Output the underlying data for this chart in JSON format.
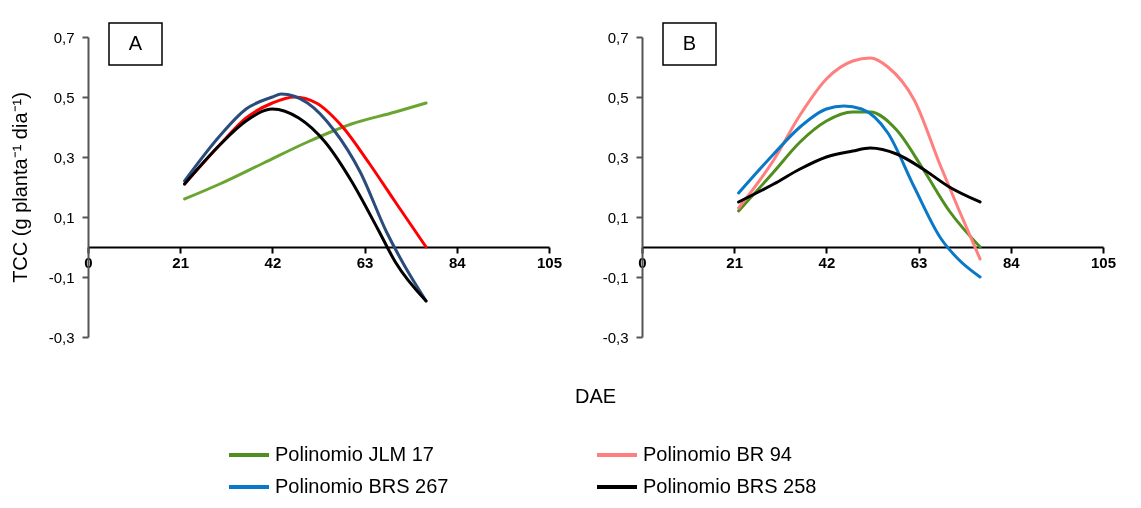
{
  "chart_data": [
    {
      "type": "line",
      "annotations": [
        "A"
      ],
      "ylabel": "TCC (g planta⁻¹ dia⁻¹)",
      "xlabel": "DAE",
      "xlim": [
        0,
        105
      ],
      "xticks": [
        0,
        21,
        42,
        63,
        84,
        105
      ],
      "ylim": [
        -0.3,
        0.7
      ],
      "yticks": [
        {
          "value": -0.3,
          "label": "-0,3"
        },
        {
          "value": -0.1,
          "label": "-0,1"
        },
        {
          "value": 0.1,
          "label": "0,1"
        },
        {
          "value": 0.3,
          "label": "0,3"
        },
        {
          "value": 0.5,
          "label": "0,5"
        },
        {
          "value": 0.7,
          "label": "0,7"
        }
      ],
      "grid": false,
      "legend": false,
      "marker": "none",
      "line_style": "solid",
      "series": [
        {
          "color": "#6aa531",
          "x": [
            22,
            30,
            40,
            50,
            60,
            70,
            77
          ],
          "values": [
            0.16,
            0.21,
            0.28,
            0.35,
            0.41,
            0.45,
            0.48
          ]
        },
        {
          "color": "#ff0000",
          "x": [
            22,
            30,
            36,
            42,
            47,
            52,
            58,
            64,
            70,
            77
          ],
          "values": [
            0.21,
            0.34,
            0.43,
            0.48,
            0.5,
            0.48,
            0.4,
            0.28,
            0.15,
            0.0
          ]
        },
        {
          "color": "#2a4b7c",
          "x": [
            22,
            30,
            36,
            42,
            44,
            50,
            56,
            62,
            68,
            72,
            77
          ],
          "values": [
            0.22,
            0.37,
            0.46,
            0.5,
            0.51,
            0.48,
            0.39,
            0.25,
            0.05,
            -0.06,
            -0.18
          ]
        },
        {
          "color": "#000000",
          "x": [
            22,
            30,
            36,
            42,
            48,
            54,
            60,
            66,
            70,
            77
          ],
          "values": [
            0.21,
            0.34,
            0.42,
            0.46,
            0.43,
            0.35,
            0.22,
            0.06,
            -0.05,
            -0.18
          ]
        }
      ]
    },
    {
      "type": "line",
      "annotations": [
        "B"
      ],
      "xlim": [
        0,
        105
      ],
      "xticks": [
        0,
        21,
        42,
        63,
        84,
        105
      ],
      "ylim": [
        -0.3,
        0.7
      ],
      "yticks": [
        {
          "value": -0.3,
          "label": "-0,3"
        },
        {
          "value": -0.1,
          "label": "-0,1"
        },
        {
          "value": 0.1,
          "label": "0,1"
        },
        {
          "value": 0.3,
          "label": "0,3"
        },
        {
          "value": 0.5,
          "label": "0,5"
        },
        {
          "value": 0.7,
          "label": "0,7"
        }
      ],
      "grid": false,
      "legend": "bottom",
      "marker": "none",
      "line_style": "solid",
      "series": [
        {
          "name": "Polinomio JLM 17",
          "color": "#4e8f1f",
          "x": [
            22,
            30,
            36,
            42,
            48,
            52,
            58,
            64,
            70,
            77
          ],
          "values": [
            0.12,
            0.25,
            0.35,
            0.42,
            0.45,
            0.45,
            0.39,
            0.26,
            0.12,
            0.0
          ]
        },
        {
          "name": "Polinomio BR 94",
          "color": "#ff7f7f",
          "x": [
            22,
            30,
            36,
            42,
            48,
            52,
            56,
            62,
            68,
            72,
            77
          ],
          "values": [
            0.13,
            0.29,
            0.44,
            0.56,
            0.62,
            0.63,
            0.6,
            0.49,
            0.27,
            0.13,
            -0.04
          ]
        },
        {
          "name": "Polinomio BRS 267",
          "color": "#0a78c8",
          "x": [
            22,
            30,
            36,
            42,
            46,
            50,
            56,
            62,
            68,
            72,
            77
          ],
          "values": [
            0.18,
            0.31,
            0.4,
            0.46,
            0.47,
            0.46,
            0.38,
            0.2,
            0.03,
            -0.04,
            -0.1
          ]
        },
        {
          "name": "Polinomio BRS 258",
          "color": "#000000",
          "x": [
            22,
            30,
            36,
            42,
            48,
            52,
            58,
            64,
            70,
            77
          ],
          "values": [
            0.15,
            0.21,
            0.26,
            0.3,
            0.32,
            0.33,
            0.31,
            0.26,
            0.2,
            0.15
          ]
        }
      ]
    }
  ]
}
